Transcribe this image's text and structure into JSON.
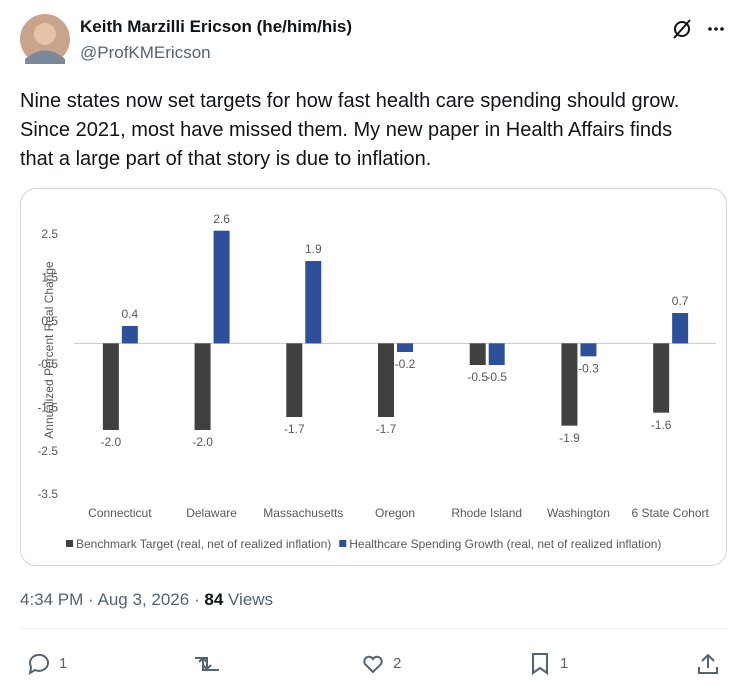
{
  "author": {
    "name": "Keith Marzilli Ericson (he/him/his)",
    "handle": "@ProfKMEricson"
  },
  "text_lines": [
    "Nine states now set targets for how fast health care spending should grow.",
    "Since 2021, most have missed them. My new paper in Health Affairs finds",
    "that a large part of that story is due to inflation."
  ],
  "chart_data": {
    "type": "bar",
    "ylabel": "Annualized Percent Real Change",
    "categories": [
      "Connecticut",
      "Delaware",
      "Massachusetts",
      "Oregon",
      "Rhode Island",
      "Washington",
      "6 State Cohort"
    ],
    "series": [
      {
        "name": "Benchmark Target (real, net of realized inflation)",
        "color": "#404040",
        "values": [
          -2.0,
          -2.0,
          -1.7,
          -1.7,
          -0.5,
          -1.9,
          -1.6
        ],
        "value_labels": [
          "-2.0",
          "-2.0",
          "-1.7",
          "-1.7",
          "-0.5",
          "-1.9",
          "-1.6"
        ]
      },
      {
        "name": "Healthcare Spending Growth (real, net of realized inflation)",
        "color": "#2e4f9a",
        "values": [
          0.4,
          2.6,
          1.9,
          -0.2,
          -0.5,
          -0.3,
          0.7
        ],
        "value_labels": [
          "0.4",
          "2.6",
          "1.9",
          "-0.2",
          "-0.5",
          "-0.3",
          "0.7"
        ]
      }
    ],
    "ylim": [
      -3.5,
      3.2
    ],
    "yticks": [
      2.5,
      1.5,
      0.5,
      -0.5,
      -1.5,
      -2.5,
      -3.5
    ],
    "legend": "bottom"
  },
  "meta": {
    "time": "4:34 PM",
    "separator": "·",
    "date": "Aug 3, 2026",
    "views": "84",
    "views_label": "Views"
  },
  "actions": {
    "replies": "1",
    "likes": "2",
    "bookmarks": "1"
  }
}
